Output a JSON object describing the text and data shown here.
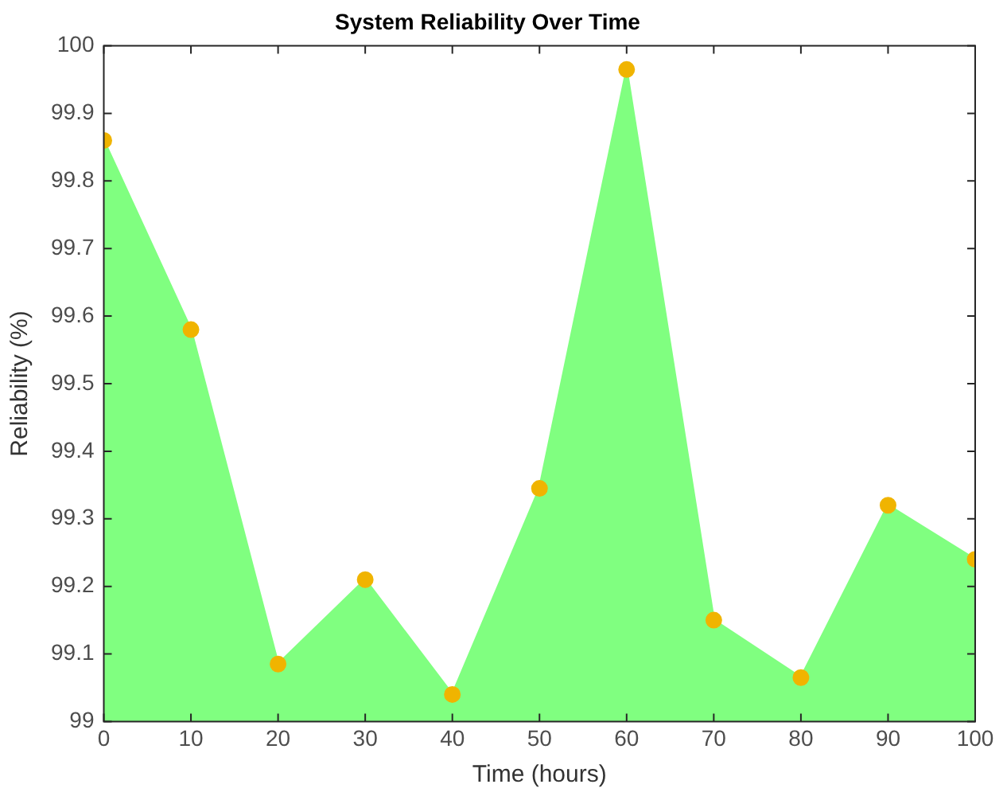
{
  "chart_data": {
    "type": "area",
    "title": "System Reliability Over Time",
    "xlabel": "Time (hours)",
    "ylabel": "Reliability (%)",
    "x": [
      0,
      10,
      20,
      30,
      40,
      50,
      60,
      70,
      80,
      90,
      100
    ],
    "series": [
      {
        "color": "#80ff80",
        "values": [
          99.86,
          99.58,
          99.085,
          99.21,
          99.04,
          99.345,
          99.965,
          99.15,
          99.065,
          99.32,
          99.24
        ]
      }
    ],
    "xlim": [
      0,
      100
    ],
    "xticks": [
      0,
      10,
      20,
      30,
      40,
      50,
      60,
      70,
      80,
      90,
      100
    ],
    "ylim": [
      99,
      100
    ],
    "yticks": [
      99,
      99.1,
      99.2,
      99.3,
      99.4,
      99.5,
      99.6,
      99.7,
      99.8,
      99.9,
      100
    ],
    "marker": "circle",
    "legend": false
  }
}
